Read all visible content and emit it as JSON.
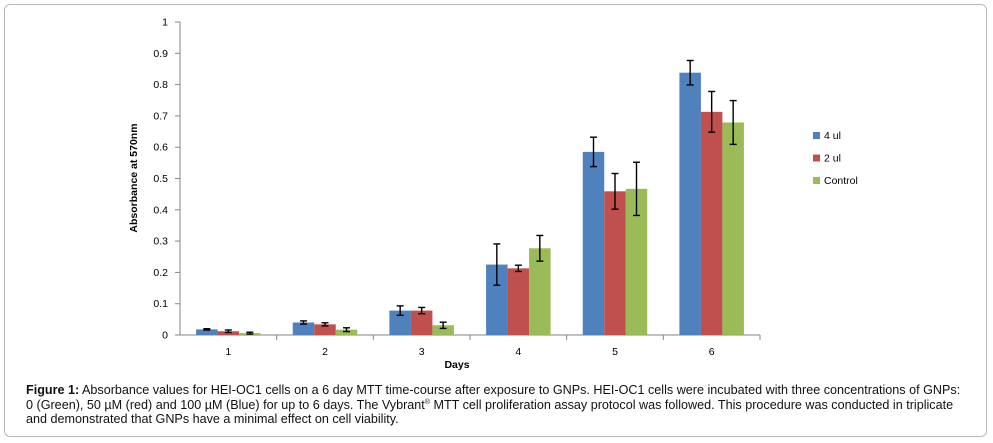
{
  "chart_data": {
    "type": "bar",
    "categories": [
      "1",
      "2",
      "3",
      "4",
      "5",
      "6"
    ],
    "series": [
      {
        "name": "4 ul",
        "color": "#4f81bd",
        "values": [
          0.018,
          0.04,
          0.078,
          0.225,
          0.585,
          0.838
        ],
        "errors": [
          0.002,
          0.005,
          0.015,
          0.066,
          0.047,
          0.039
        ]
      },
      {
        "name": "2 ul",
        "color": "#c0504d",
        "values": [
          0.012,
          0.034,
          0.078,
          0.213,
          0.459,
          0.713
        ],
        "errors": [
          0.004,
          0.005,
          0.01,
          0.01,
          0.057,
          0.065
        ]
      },
      {
        "name": "Control",
        "color": "#9bbb59",
        "values": [
          0.006,
          0.017,
          0.031,
          0.277,
          0.467,
          0.679
        ],
        "errors": [
          0.003,
          0.006,
          0.01,
          0.041,
          0.085,
          0.07
        ]
      }
    ],
    "ylabel": "Absorbance at 570nm",
    "xlabel": "Days",
    "ylim": [
      0,
      1
    ],
    "yticks": [
      "0",
      "0.1",
      "0.2",
      "0.3",
      "0.4",
      "0.5",
      "0.6",
      "0.7",
      "0.8",
      "0.9",
      "1"
    ],
    "grid": false,
    "legend_position": "right"
  },
  "caption": {
    "label": "Figure 1:",
    "text_before_sup": " Absorbance values for HEI-OC1 cells on a 6 day MTT time-course after exposure to GNPs. HEI-OC1 cells were incubated with three concentrations of GNPs: 0 (Green), 50 µM (red) and 100 µM (Blue) for up to 6 days. The Vybrant",
    "sup": "®",
    "text_after_sup": " MTT cell proliferation assay protocol was followed. This procedure was conducted in triplicate and demonstrated that GNPs have a minimal effect on cell viability."
  }
}
